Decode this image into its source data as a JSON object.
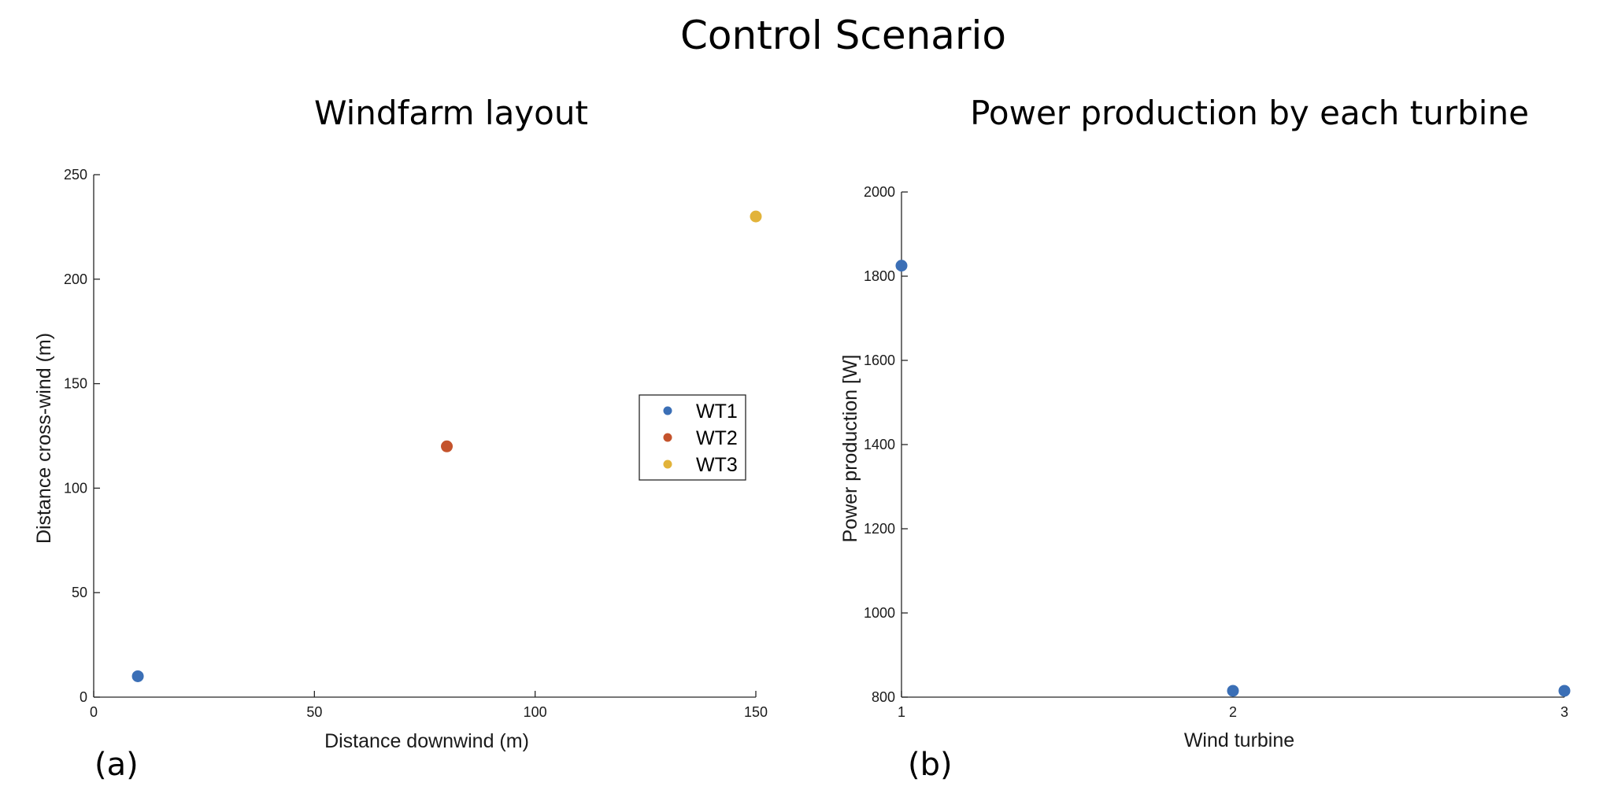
{
  "figure_title": "Control Scenario",
  "chart_data": [
    {
      "type": "scatter",
      "title": "Windfarm layout",
      "panel_label": "(a)",
      "xlabel": "Distance downwind (m)",
      "ylabel": "Distance cross-wind (m)",
      "xlim": [
        0,
        150
      ],
      "ylim": [
        0,
        250
      ],
      "xticks": [
        0,
        50,
        100,
        150
      ],
      "yticks": [
        0,
        50,
        100,
        150,
        200,
        250
      ],
      "grid": false,
      "legend": {
        "placement": "right",
        "entries": [
          "WT1",
          "WT2",
          "WT3"
        ]
      },
      "series": [
        {
          "name": "WT1",
          "color": "#3b6fb6",
          "x": [
            10
          ],
          "y": [
            10
          ]
        },
        {
          "name": "WT2",
          "color": "#c4532c",
          "x": [
            80
          ],
          "y": [
            120
          ]
        },
        {
          "name": "WT3",
          "color": "#e2b33a",
          "x": [
            150
          ],
          "y": [
            230
          ]
        }
      ]
    },
    {
      "type": "scatter",
      "title": "Power production by each turbine",
      "panel_label": "(b)",
      "xlabel": "Wind turbine",
      "ylabel": "Power production [W]",
      "xlim": [
        1,
        3
      ],
      "ylim": [
        800,
        2000
      ],
      "xticks": [
        1,
        2,
        3
      ],
      "yticks": [
        800,
        1000,
        1200,
        1400,
        1600,
        1800,
        2000
      ],
      "grid": false,
      "series": [
        {
          "color": "#3b6fb6",
          "x": [
            1,
            2,
            3
          ],
          "y": [
            1825,
            815,
            815
          ]
        }
      ]
    }
  ]
}
